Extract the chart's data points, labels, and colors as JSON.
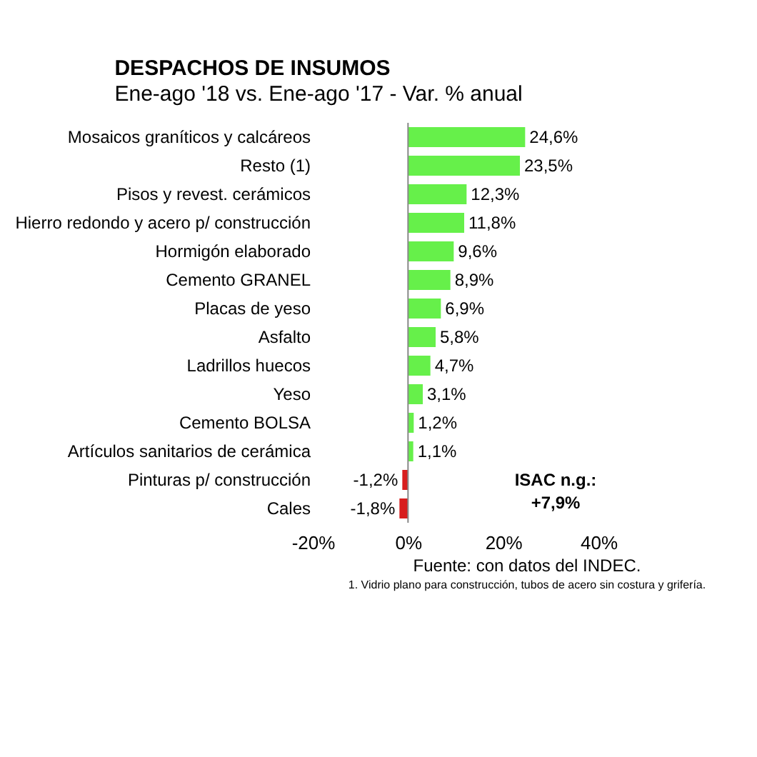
{
  "chart_data": {
    "type": "bar",
    "orientation": "horizontal",
    "title": "DESPACHOS DE INSUMOS",
    "subtitle": "Ene-ago '18 vs. Ene-ago '17 - Var. % anual",
    "categories": [
      "Mosaicos graníticos y calcáreos",
      "Resto (1)",
      "Pisos y revest. cerámicos",
      "Hierro redondo y acero p/ construcción",
      "Hormigón elaborado",
      "Cemento GRANEL",
      "Placas de yeso",
      "Asfalto",
      "Ladrillos huecos",
      "Yeso",
      "Cemento BOLSA",
      "Artículos sanitarios de cerámica",
      "Pinturas p/ construcción",
      "Cales"
    ],
    "values": [
      24.6,
      23.5,
      12.3,
      11.8,
      9.6,
      8.9,
      6.9,
      5.8,
      4.7,
      3.1,
      1.2,
      1.1,
      -1.2,
      -1.8
    ],
    "value_labels": [
      "24,6%",
      "23,5%",
      "12,3%",
      "11,8%",
      "9,6%",
      "8,9%",
      "6,9%",
      "5,8%",
      "4,7%",
      "3,1%",
      "1,2%",
      "1,1%",
      "-1,2%",
      "-1,8%"
    ],
    "colors": [
      "#66f04a",
      "#66f04a",
      "#66f04a",
      "#66f04a",
      "#66f04a",
      "#66f04a",
      "#66f04a",
      "#66f04a",
      "#66f04a",
      "#66f04a",
      "#66f04a",
      "#66f04a",
      "#d81e1e",
      "#d81e1e"
    ],
    "xlim": [
      -20,
      40
    ],
    "xticks": [
      {
        "value": -20,
        "label": "-20%"
      },
      {
        "value": 0,
        "label": "0%"
      },
      {
        "value": 20,
        "label": "20%"
      },
      {
        "value": 40,
        "label": "40%"
      }
    ],
    "grid": false,
    "ref_lines": [
      {
        "axis": "x",
        "value": 0,
        "color": "#888888"
      }
    ],
    "annotations": [
      "ISAC n.g.: +7,9%",
      "Fuente: con datos del INDEC.",
      "1. Vidrio plano para construcción, tubos de acero sin costura y grifería."
    ]
  }
}
